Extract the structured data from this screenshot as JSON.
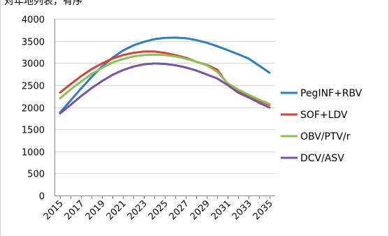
{
  "chart_data": {
    "type": "line",
    "title": "",
    "clipped_header_text": "对年地列表，有序",
    "xlabel": "",
    "ylabel": "",
    "ylim": [
      0,
      4000
    ],
    "yticks": [
      0,
      500,
      1000,
      1500,
      2000,
      2500,
      3000,
      3500,
      4000
    ],
    "x": [
      2015,
      2016,
      2017,
      2018,
      2019,
      2020,
      2021,
      2022,
      2023,
      2024,
      2025,
      2026,
      2027,
      2028,
      2029,
      2030,
      2031,
      2032,
      2033,
      2034,
      2035
    ],
    "xtick_labels": [
      "2015",
      "2017",
      "2019",
      "2021",
      "2023",
      "2025",
      "2027",
      "2029",
      "2031",
      "2033",
      "2035"
    ],
    "grid": "horizontal major gridlines",
    "legend_position": "right",
    "series": [
      {
        "name": "PegINF+RBV",
        "color": "#2E7EBF",
        "values": [
          1880,
          2150,
          2420,
          2680,
          2920,
          3120,
          3280,
          3400,
          3480,
          3540,
          3570,
          3575,
          3560,
          3520,
          3460,
          3380,
          3290,
          3200,
          3100,
          2940,
          2780
        ]
      },
      {
        "name": "SOF+LDV",
        "color": "#D9403A",
        "values": [
          2330,
          2520,
          2700,
          2860,
          2990,
          3100,
          3180,
          3230,
          3260,
          3260,
          3230,
          3180,
          3120,
          3030,
          2960,
          2850,
          2520,
          2380,
          2260,
          2150,
          2050
        ]
      },
      {
        "name": "OBV/PTV/r",
        "color": "#8CC152",
        "values": [
          2200,
          2400,
          2580,
          2750,
          2890,
          3010,
          3090,
          3150,
          3180,
          3190,
          3180,
          3150,
          3100,
          3030,
          2950,
          2800,
          2540,
          2400,
          2280,
          2170,
          2070
        ]
      },
      {
        "name": "DCV/ASV",
        "color": "#7B52A0",
        "values": [
          1860,
          2050,
          2250,
          2430,
          2590,
          2730,
          2840,
          2920,
          2970,
          2990,
          2980,
          2950,
          2900,
          2830,
          2740,
          2650,
          2500,
          2330,
          2220,
          2100,
          1990
        ]
      }
    ]
  }
}
